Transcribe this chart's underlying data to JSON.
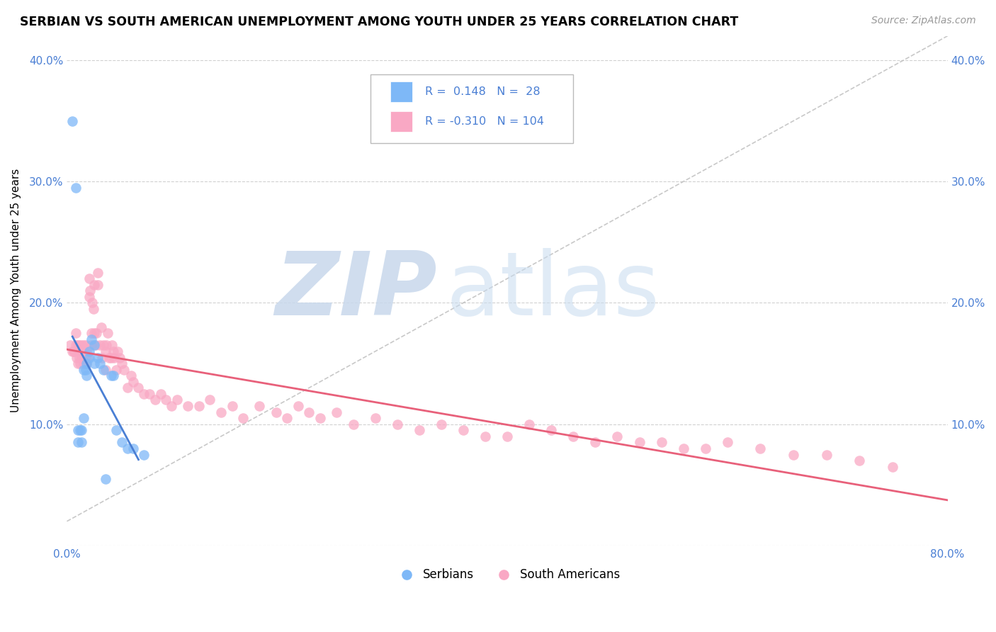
{
  "title": "SERBIAN VS SOUTH AMERICAN UNEMPLOYMENT AMONG YOUTH UNDER 25 YEARS CORRELATION CHART",
  "source": "Source: ZipAtlas.com",
  "ylabel": "Unemployment Among Youth under 25 years",
  "xlim": [
    0.0,
    0.8
  ],
  "ylim": [
    0.0,
    0.42
  ],
  "x_ticks": [
    0.0,
    0.1,
    0.2,
    0.3,
    0.4,
    0.5,
    0.6,
    0.7,
    0.8
  ],
  "x_tick_labels": [
    "0.0%",
    "",
    "",
    "",
    "",
    "",
    "",
    "",
    "80.0%"
  ],
  "y_ticks": [
    0.0,
    0.1,
    0.2,
    0.3,
    0.4
  ],
  "y_tick_labels_left": [
    "",
    "10.0%",
    "20.0%",
    "30.0%",
    "40.0%"
  ],
  "y_tick_labels_right": [
    "",
    "10.0%",
    "20.0%",
    "30.0%",
    "40.0%"
  ],
  "serbian_color": "#7EB8F7",
  "south_american_color": "#F9A8C4",
  "serbian_line_color": "#4A7FD4",
  "south_american_line_color": "#E8607A",
  "legend_serbian_R": "0.148",
  "legend_serbian_N": "28",
  "legend_sa_R": "-0.310",
  "legend_sa_N": "104",
  "serbian_x": [
    0.005,
    0.008,
    0.01,
    0.01,
    0.012,
    0.013,
    0.013,
    0.015,
    0.015,
    0.017,
    0.018,
    0.018,
    0.02,
    0.02,
    0.022,
    0.025,
    0.025,
    0.028,
    0.03,
    0.033,
    0.035,
    0.04,
    0.042,
    0.045,
    0.05,
    0.055,
    0.06,
    0.07
  ],
  "serbian_y": [
    0.35,
    0.295,
    0.085,
    0.095,
    0.095,
    0.085,
    0.095,
    0.145,
    0.105,
    0.145,
    0.14,
    0.15,
    0.16,
    0.155,
    0.17,
    0.15,
    0.165,
    0.155,
    0.15,
    0.145,
    0.055,
    0.14,
    0.14,
    0.095,
    0.085,
    0.08,
    0.08,
    0.075
  ],
  "sa_x": [
    0.003,
    0.005,
    0.006,
    0.007,
    0.008,
    0.008,
    0.009,
    0.01,
    0.01,
    0.011,
    0.011,
    0.012,
    0.012,
    0.013,
    0.013,
    0.014,
    0.014,
    0.015,
    0.015,
    0.016,
    0.016,
    0.017,
    0.017,
    0.018,
    0.018,
    0.019,
    0.02,
    0.02,
    0.021,
    0.022,
    0.022,
    0.023,
    0.024,
    0.025,
    0.025,
    0.026,
    0.027,
    0.028,
    0.028,
    0.03,
    0.031,
    0.032,
    0.033,
    0.035,
    0.035,
    0.036,
    0.037,
    0.038,
    0.04,
    0.041,
    0.042,
    0.043,
    0.045,
    0.046,
    0.048,
    0.05,
    0.052,
    0.055,
    0.058,
    0.06,
    0.065,
    0.07,
    0.075,
    0.08,
    0.085,
    0.09,
    0.095,
    0.1,
    0.11,
    0.12,
    0.13,
    0.14,
    0.15,
    0.16,
    0.175,
    0.19,
    0.2,
    0.21,
    0.22,
    0.23,
    0.245,
    0.26,
    0.28,
    0.3,
    0.32,
    0.34,
    0.36,
    0.38,
    0.4,
    0.42,
    0.44,
    0.46,
    0.48,
    0.5,
    0.52,
    0.54,
    0.56,
    0.58,
    0.6,
    0.63,
    0.66,
    0.69,
    0.72,
    0.75
  ],
  "sa_y": [
    0.165,
    0.16,
    0.16,
    0.16,
    0.165,
    0.175,
    0.155,
    0.15,
    0.165,
    0.155,
    0.165,
    0.15,
    0.16,
    0.155,
    0.165,
    0.155,
    0.16,
    0.15,
    0.165,
    0.155,
    0.16,
    0.155,
    0.165,
    0.15,
    0.16,
    0.155,
    0.205,
    0.22,
    0.21,
    0.165,
    0.175,
    0.2,
    0.195,
    0.215,
    0.175,
    0.165,
    0.175,
    0.215,
    0.225,
    0.165,
    0.18,
    0.155,
    0.165,
    0.145,
    0.16,
    0.165,
    0.175,
    0.155,
    0.155,
    0.165,
    0.16,
    0.155,
    0.145,
    0.16,
    0.155,
    0.15,
    0.145,
    0.13,
    0.14,
    0.135,
    0.13,
    0.125,
    0.125,
    0.12,
    0.125,
    0.12,
    0.115,
    0.12,
    0.115,
    0.115,
    0.12,
    0.11,
    0.115,
    0.105,
    0.115,
    0.11,
    0.105,
    0.115,
    0.11,
    0.105,
    0.11,
    0.1,
    0.105,
    0.1,
    0.095,
    0.1,
    0.095,
    0.09,
    0.09,
    0.1,
    0.095,
    0.09,
    0.085,
    0.09,
    0.085,
    0.085,
    0.08,
    0.08,
    0.085,
    0.08,
    0.075,
    0.075,
    0.07,
    0.065
  ]
}
